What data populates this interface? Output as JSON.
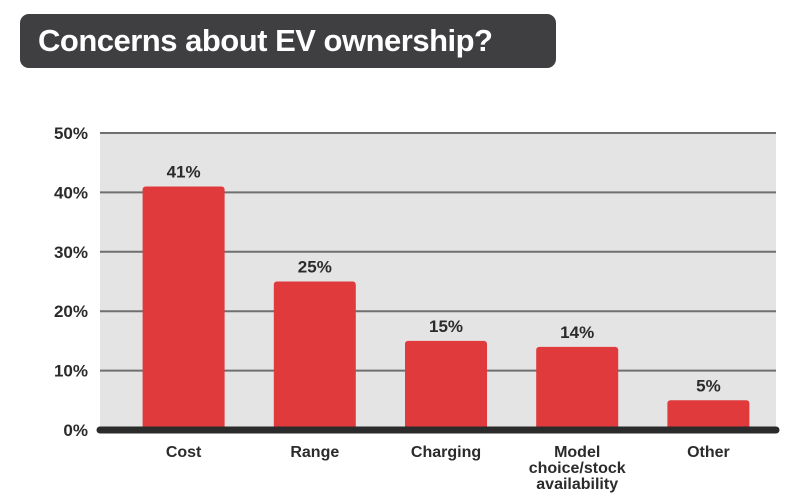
{
  "chart_data": {
    "type": "bar",
    "title": "Concerns about EV ownership?",
    "categories": [
      "Cost",
      "Range",
      "Charging",
      "Model choice/stock availability",
      "Other"
    ],
    "category_label_lines": [
      [
        "Cost"
      ],
      [
        "Range"
      ],
      [
        "Charging"
      ],
      [
        "Model",
        "choice/stock",
        "availability"
      ],
      [
        "Other"
      ]
    ],
    "values": [
      41,
      25,
      15,
      14,
      5
    ],
    "value_labels": [
      "41%",
      "25%",
      "15%",
      "14%",
      "5%"
    ],
    "ylim": [
      0,
      50
    ],
    "yticks": [
      0,
      10,
      20,
      30,
      40,
      50
    ],
    "ytick_labels": [
      "0%",
      "10%",
      "20%",
      "30%",
      "40%",
      "50%"
    ],
    "xlabel": "",
    "ylabel": "",
    "grid": true,
    "colors": {
      "bar": "#e03a3c",
      "plot_background": "#e4e4e4",
      "gridline": "#6f6f6f",
      "baseline": "#2b2b2b",
      "title_background": "#3f3f41"
    }
  }
}
